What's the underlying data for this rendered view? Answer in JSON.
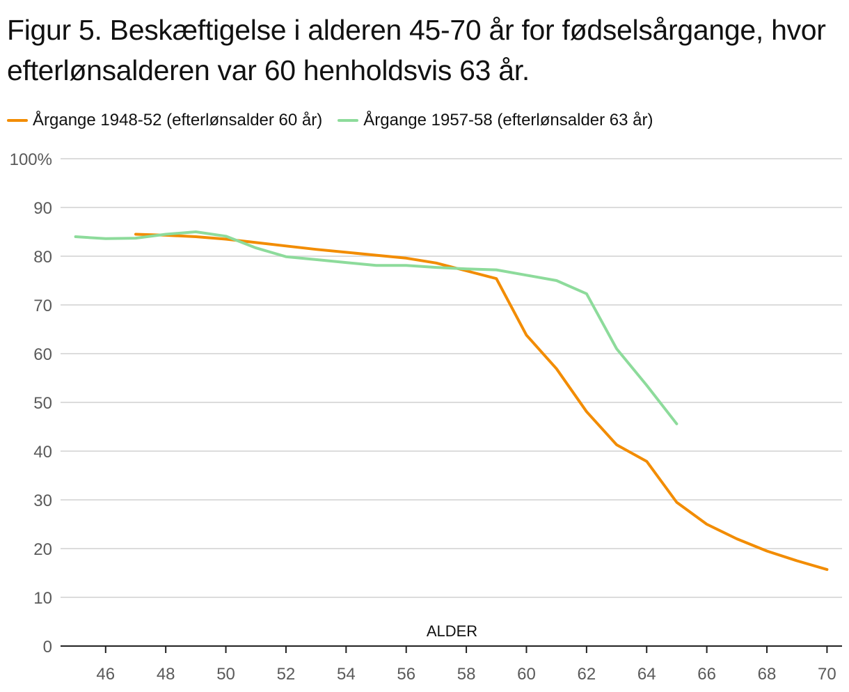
{
  "title": "Figur 5. Beskæftigelse i alderen 45-70 år for fødselsårgange, hvor efterlønsalderen var 60 henholdsvis 63 år.",
  "chart_data": {
    "type": "line",
    "title": "Figur 5. Beskæftigelse i alderen 45-70 år for fødselsårgange, hvor efterlønsalderen var 60 henholdsvis 63 år.",
    "xlabel": "ALDER",
    "ylabel": "",
    "xlim": [
      44.5,
      70.5
    ],
    "ylim": [
      0,
      100
    ],
    "x_ticks": [
      46,
      48,
      50,
      52,
      54,
      56,
      58,
      60,
      62,
      64,
      66,
      68,
      70
    ],
    "y_ticks": [
      0,
      10,
      20,
      30,
      40,
      50,
      60,
      70,
      80,
      90,
      100
    ],
    "y_tick_labels": [
      "0",
      "10",
      "20",
      "30",
      "40",
      "50",
      "60",
      "70",
      "80",
      "90",
      "100%"
    ],
    "grid": true,
    "legend_position": "top-left",
    "series": [
      {
        "name": "Årgange 1948-52 (efterlønsalder 60 år)",
        "color": "#f28c00",
        "x": [
          47,
          48,
          49,
          50,
          51,
          52,
          53,
          54,
          55,
          56,
          57,
          58,
          59,
          60,
          61,
          62,
          63,
          64,
          65,
          66,
          67,
          68,
          69,
          70
        ],
        "values": [
          84.5,
          84.3,
          84.0,
          83.5,
          82.8,
          82.1,
          81.4,
          80.8,
          80.2,
          79.6,
          78.6,
          77.0,
          75.4,
          63.8,
          56.9,
          48.1,
          41.3,
          37.9,
          29.5,
          25.0,
          22.0,
          19.5,
          17.5,
          15.7
        ]
      },
      {
        "name": "Årgange 1957-58 (efterlønsalder 63 år)",
        "color": "#8ddb9b",
        "x": [
          45,
          46,
          47,
          48,
          49,
          50,
          51,
          52,
          53,
          54,
          55,
          56,
          57,
          58,
          59,
          60,
          61,
          62,
          63,
          64,
          65
        ],
        "values": [
          84.0,
          83.6,
          83.7,
          84.5,
          85.0,
          84.1,
          81.7,
          79.9,
          79.3,
          78.7,
          78.1,
          78.1,
          77.7,
          77.4,
          77.2,
          76.1,
          75.0,
          72.3,
          61.0,
          53.5,
          45.6
        ]
      }
    ]
  }
}
